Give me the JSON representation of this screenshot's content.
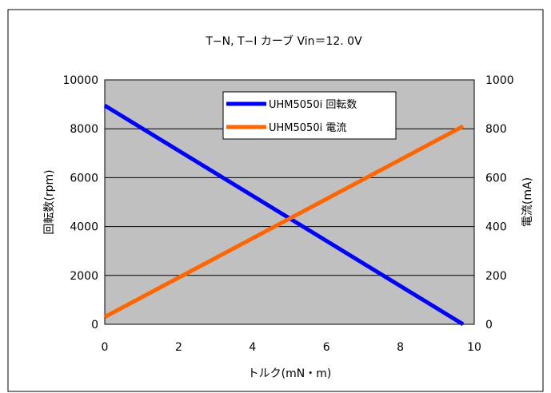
{
  "chart_data": {
    "type": "line",
    "title": "T−N, T−I カーブ Vin＝12. 0V",
    "xlabel": "トルク(mN・m)",
    "ylabel": "回転数(rpm)",
    "y2label": "電流(mA)",
    "xlim": [
      0,
      10
    ],
    "ylim": [
      0,
      10000
    ],
    "y2lim": [
      0,
      1000
    ],
    "x_ticks": [
      "0",
      "2",
      "4",
      "6",
      "8",
      "10"
    ],
    "y_ticks": [
      "0",
      "2000",
      "4000",
      "6000",
      "8000",
      "10000"
    ],
    "y2_ticks": [
      "0",
      "200",
      "400",
      "600",
      "800",
      "1000"
    ],
    "grid": "horizontal",
    "legend_position": "top-center",
    "plot_background": "#c0c0c0",
    "series": [
      {
        "name": "UHM5050i 回転数",
        "axis": "left",
        "color": "#0000ff",
        "x": [
          0,
          9.7
        ],
        "y": [
          8950,
          0
        ]
      },
      {
        "name": "UHM5050i 電流",
        "axis": "right",
        "color": "#ff6600",
        "x": [
          0,
          9.7
        ],
        "y": [
          30,
          810
        ]
      }
    ]
  }
}
